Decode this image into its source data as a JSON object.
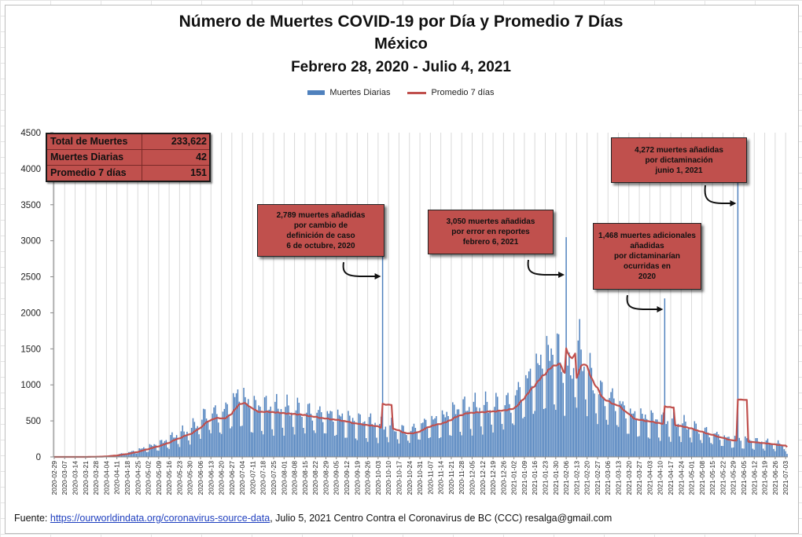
{
  "title": {
    "line1": "Número de Muertes COVID-19 por Día y Promedio 7 Días",
    "line2": "México",
    "line3": "Febrero 28, 2020 - Julio 4, 2021"
  },
  "legend": {
    "bars": "Muertes Diarias",
    "line": "Promedio 7 días"
  },
  "colors": {
    "bars": "#4f81bd",
    "line": "#c0504d",
    "callout": "#c0504d"
  },
  "summary": {
    "rows": [
      {
        "label": "Total de Muertes",
        "value": "233,622"
      },
      {
        "label": "Muertes Diarias",
        "value": "42"
      },
      {
        "label": "Promedio 7 días",
        "value": "151"
      }
    ]
  },
  "annotations": [
    {
      "lines": [
        "2,789 muertes  añadidas",
        "por cambio de",
        "definición de caso",
        "6 de octubre,  2020"
      ],
      "date": "2020-10-06"
    },
    {
      "lines": [
        "3,050 muertes  añadidas",
        "por error en reportes",
        "febrero   6, 2021"
      ],
      "date": "2021-02-06"
    },
    {
      "lines": [
        "1,468  muertes adicionales",
        "añadidas",
        "por dictaminarían",
        "ocurridas  en",
        "2020"
      ],
      "date": "2021-04-13"
    },
    {
      "lines": [
        "4,272  muertes añadidas",
        "por dictaminación",
        "junio 1, 2021"
      ],
      "date": "2021-06-01"
    }
  ],
  "footer": {
    "prefix": "Fuente: ",
    "link": "https://ourworldindata.org/coronavirus-source-data",
    "suffix": ",  Julio 5, 2021     Centro Contra el Coronavirus de BC (CCC)    resalga@gmail.com"
  },
  "chart_data": {
    "type": "bar",
    "x_start": "2020-02-29",
    "x_end": "2021-07-04",
    "tick_interval_days": 7,
    "ylim": [
      0,
      4500
    ],
    "yticks": [
      0,
      500,
      1000,
      1500,
      2000,
      2500,
      3000,
      3500,
      4000,
      4500
    ],
    "grid": "vertical",
    "legend_position": "top-center",
    "series": [
      {
        "name": "Muertes Diarias",
        "kind": "bar",
        "color": "#4f81bd"
      },
      {
        "name": "Promedio 7 días",
        "kind": "line",
        "color": "#c0504d"
      }
    ],
    "avg_profile": [
      [
        "2020-02-29",
        0
      ],
      [
        "2020-03-18",
        0
      ],
      [
        "2020-03-31",
        5
      ],
      [
        "2020-04-10",
        25
      ],
      [
        "2020-04-20",
        60
      ],
      [
        "2020-05-01",
        120
      ],
      [
        "2020-05-10",
        170
      ],
      [
        "2020-05-20",
        260
      ],
      [
        "2020-05-30",
        340
      ],
      [
        "2020-06-07",
        480
      ],
      [
        "2020-06-13",
        560
      ],
      [
        "2020-06-20",
        520
      ],
      [
        "2020-06-27",
        690
      ],
      [
        "2020-07-02",
        780
      ],
      [
        "2020-07-10",
        620
      ],
      [
        "2020-07-18",
        620
      ],
      [
        "2020-07-30",
        600
      ],
      [
        "2020-08-10",
        590
      ],
      [
        "2020-08-25",
        540
      ],
      [
        "2020-09-05",
        510
      ],
      [
        "2020-09-15",
        460
      ],
      [
        "2020-09-25",
        430
      ],
      [
        "2020-10-01",
        420
      ],
      [
        "2020-10-04",
        380
      ],
      [
        "2020-10-10",
        400
      ],
      [
        "2020-10-18",
        330
      ],
      [
        "2020-10-25",
        330
      ],
      [
        "2020-11-05",
        440
      ],
      [
        "2020-11-14",
        470
      ],
      [
        "2020-11-20",
        540
      ],
      [
        "2020-11-28",
        600
      ],
      [
        "2020-12-10",
        620
      ],
      [
        "2020-12-20",
        640
      ],
      [
        "2020-12-31",
        680
      ],
      [
        "2021-01-08",
        880
      ],
      [
        "2021-01-15",
        1050
      ],
      [
        "2021-01-22",
        1200
      ],
      [
        "2021-01-27",
        1280
      ],
      [
        "2021-02-02",
        1260
      ],
      [
        "2021-02-04",
        900
      ],
      [
        "2021-02-11",
        1100
      ],
      [
        "2021-02-13",
        1400
      ],
      [
        "2021-02-20",
        1100
      ],
      [
        "2021-02-27",
        820
      ],
      [
        "2021-03-05",
        760
      ],
      [
        "2021-03-12",
        700
      ],
      [
        "2021-03-20",
        530
      ],
      [
        "2021-03-28",
        500
      ],
      [
        "2021-04-05",
        470
      ],
      [
        "2021-04-12",
        440
      ],
      [
        "2021-04-20",
        430
      ],
      [
        "2021-04-27",
        400
      ],
      [
        "2021-05-05",
        350
      ],
      [
        "2021-05-15",
        290
      ],
      [
        "2021-05-25",
        230
      ],
      [
        "2021-05-31",
        220
      ],
      [
        "2021-06-10",
        200
      ],
      [
        "2021-06-20",
        180
      ],
      [
        "2021-06-27",
        160
      ],
      [
        "2021-07-04",
        151
      ]
    ],
    "spikes": [
      {
        "date": "2020-10-06",
        "value": 2789
      },
      {
        "date": "2021-02-06",
        "value": 3050
      },
      {
        "date": "2021-04-13",
        "value": 2200
      },
      {
        "date": "2021-06-01",
        "value": 4272
      }
    ],
    "last_value": 42
  }
}
